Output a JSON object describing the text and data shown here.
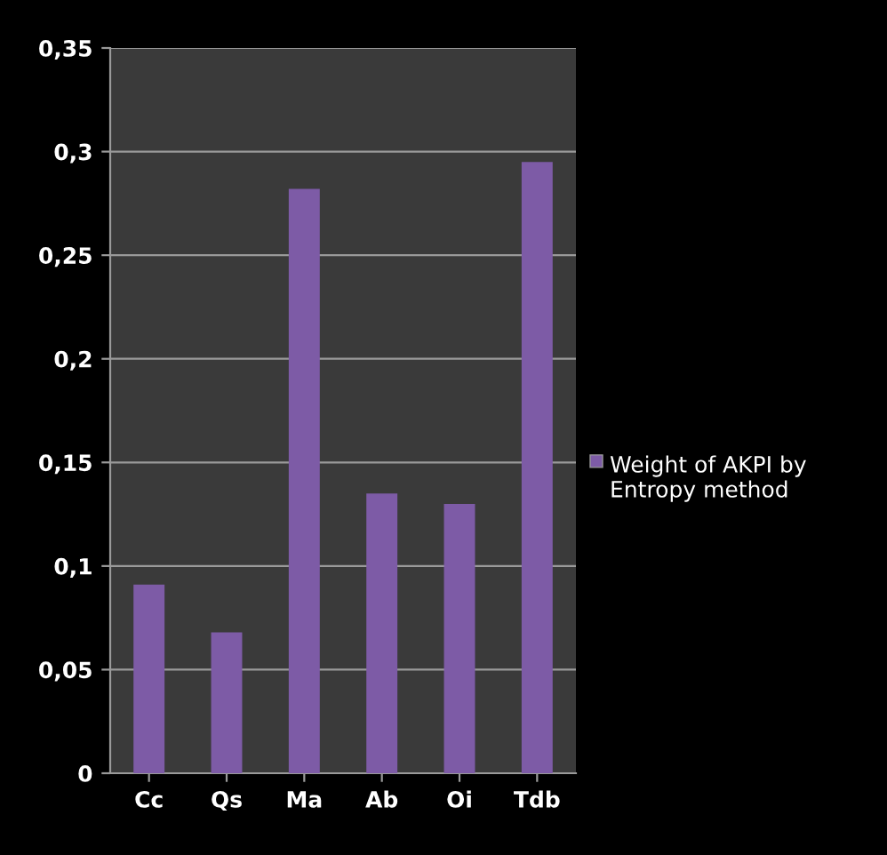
{
  "chart_data": {
    "type": "bar",
    "categories": [
      "Cc",
      "Qs",
      "Ma",
      "Ab",
      "Oi",
      "Tdb"
    ],
    "series": [
      {
        "name": "Weight of AKPI by Entropy method",
        "color": "#7d5ba6",
        "values": [
          0.091,
          0.068,
          0.282,
          0.135,
          0.13,
          0.295
        ]
      }
    ],
    "ylim": [
      0,
      0.35
    ],
    "yticks": [
      0,
      {
        "value": 0.05,
        "label": "0,05"
      },
      {
        "value": 0.1,
        "label": "0,1"
      },
      {
        "value": 0.15,
        "label": "0,15"
      },
      {
        "value": 0.2,
        "label": "0,2"
      },
      {
        "value": 0.25,
        "label": "0,25"
      },
      {
        "value": 0.3,
        "label": "0,3"
      },
      {
        "value": 0.35,
        "label": "0,35"
      }
    ],
    "grid": "y",
    "legend": "right"
  }
}
